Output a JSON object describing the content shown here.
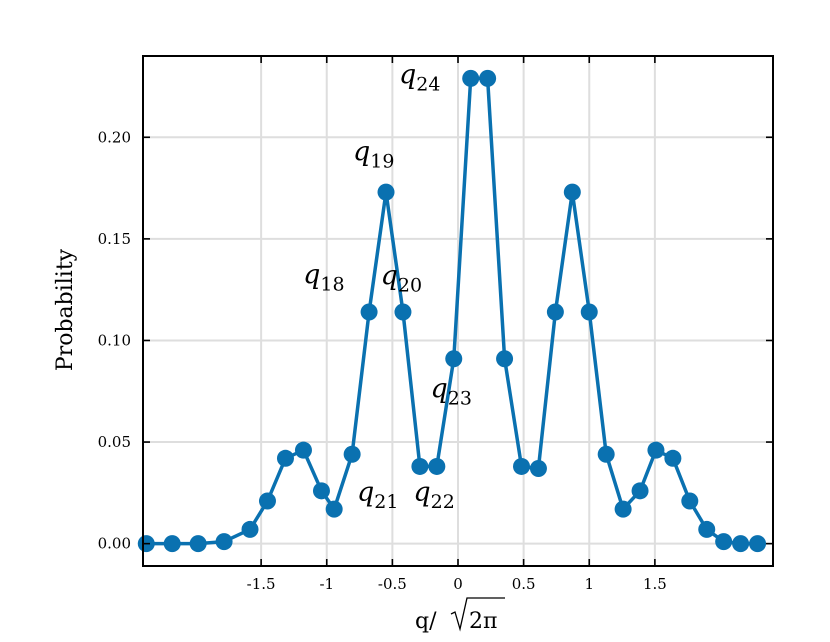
{
  "chart_data": {
    "type": "line",
    "xlabel_main": "q/",
    "xlabel_radicand": "2π",
    "ylabel": "Probability",
    "xlim": [
      -2.4,
      2.4
    ],
    "ylim": [
      -0.011,
      0.24
    ],
    "grid": true,
    "color": "#0a71b0",
    "x_ticks": [
      {
        "value": -1.5,
        "label": "-1.5"
      },
      {
        "value": -1.0,
        "label": "-1"
      },
      {
        "value": -0.5,
        "label": "-0.5"
      },
      {
        "value": 0.0,
        "label": "0"
      },
      {
        "value": 0.5,
        "label": "0.5"
      },
      {
        "value": 1.0,
        "label": "1"
      },
      {
        "value": 1.5,
        "label": "1.5"
      }
    ],
    "y_ticks": [
      {
        "value": 0.0,
        "label": "0.00"
      },
      {
        "value": 0.05,
        "label": "0.05"
      },
      {
        "value": 0.1,
        "label": "0.10"
      },
      {
        "value": 0.15,
        "label": "0.15"
      },
      {
        "value": 0.2,
        "label": "0.20"
      }
    ],
    "series": [
      {
        "x": [
          -2.375,
          -2.1774,
          -1.9798,
          -1.7823,
          -1.5847,
          -1.4516,
          -1.3145,
          -1.1774,
          -1.0403,
          -0.9435,
          -0.8065,
          -0.6774,
          -0.5484,
          -0.4194,
          -0.2903,
          -0.1613,
          -0.0323,
          0.0968,
          0.2258,
          0.3548,
          0.4839,
          0.6129,
          0.7419,
          0.871,
          1.0,
          1.129,
          1.2581,
          1.3871,
          1.5081,
          1.6371,
          1.7661,
          1.8952,
          2.0242,
          2.1532,
          2.2823
        ],
        "values": [
          0.0,
          0.0,
          0.0,
          0.001,
          0.007,
          0.021,
          0.042,
          0.046,
          0.026,
          0.017,
          0.044,
          0.114,
          0.173,
          0.114,
          0.038,
          0.038,
          0.091,
          0.229,
          0.229,
          0.091,
          0.038,
          0.037,
          0.114,
          0.173,
          0.114,
          0.044,
          0.017,
          0.026,
          0.046,
          0.042,
          0.021,
          0.007,
          0.001,
          0.0,
          0.0
        ]
      }
    ],
    "annotations": [
      {
        "text": "q",
        "sub": "24",
        "x": -0.45,
        "y": 0.2265
      },
      {
        "text": "q",
        "sub": "19",
        "x": -0.8,
        "y": 0.1885
      },
      {
        "text": "q",
        "sub": "18",
        "x": -1.18,
        "y": 0.128
      },
      {
        "text": "q",
        "sub": "20",
        "x": -0.59,
        "y": 0.1275
      },
      {
        "text": "q",
        "sub": "23",
        "x": -0.21,
        "y": 0.072
      },
      {
        "text": "q",
        "sub": "21",
        "x": -0.77,
        "y": 0.021
      },
      {
        "text": "q",
        "sub": "22",
        "x": -0.34,
        "y": 0.021
      }
    ]
  }
}
